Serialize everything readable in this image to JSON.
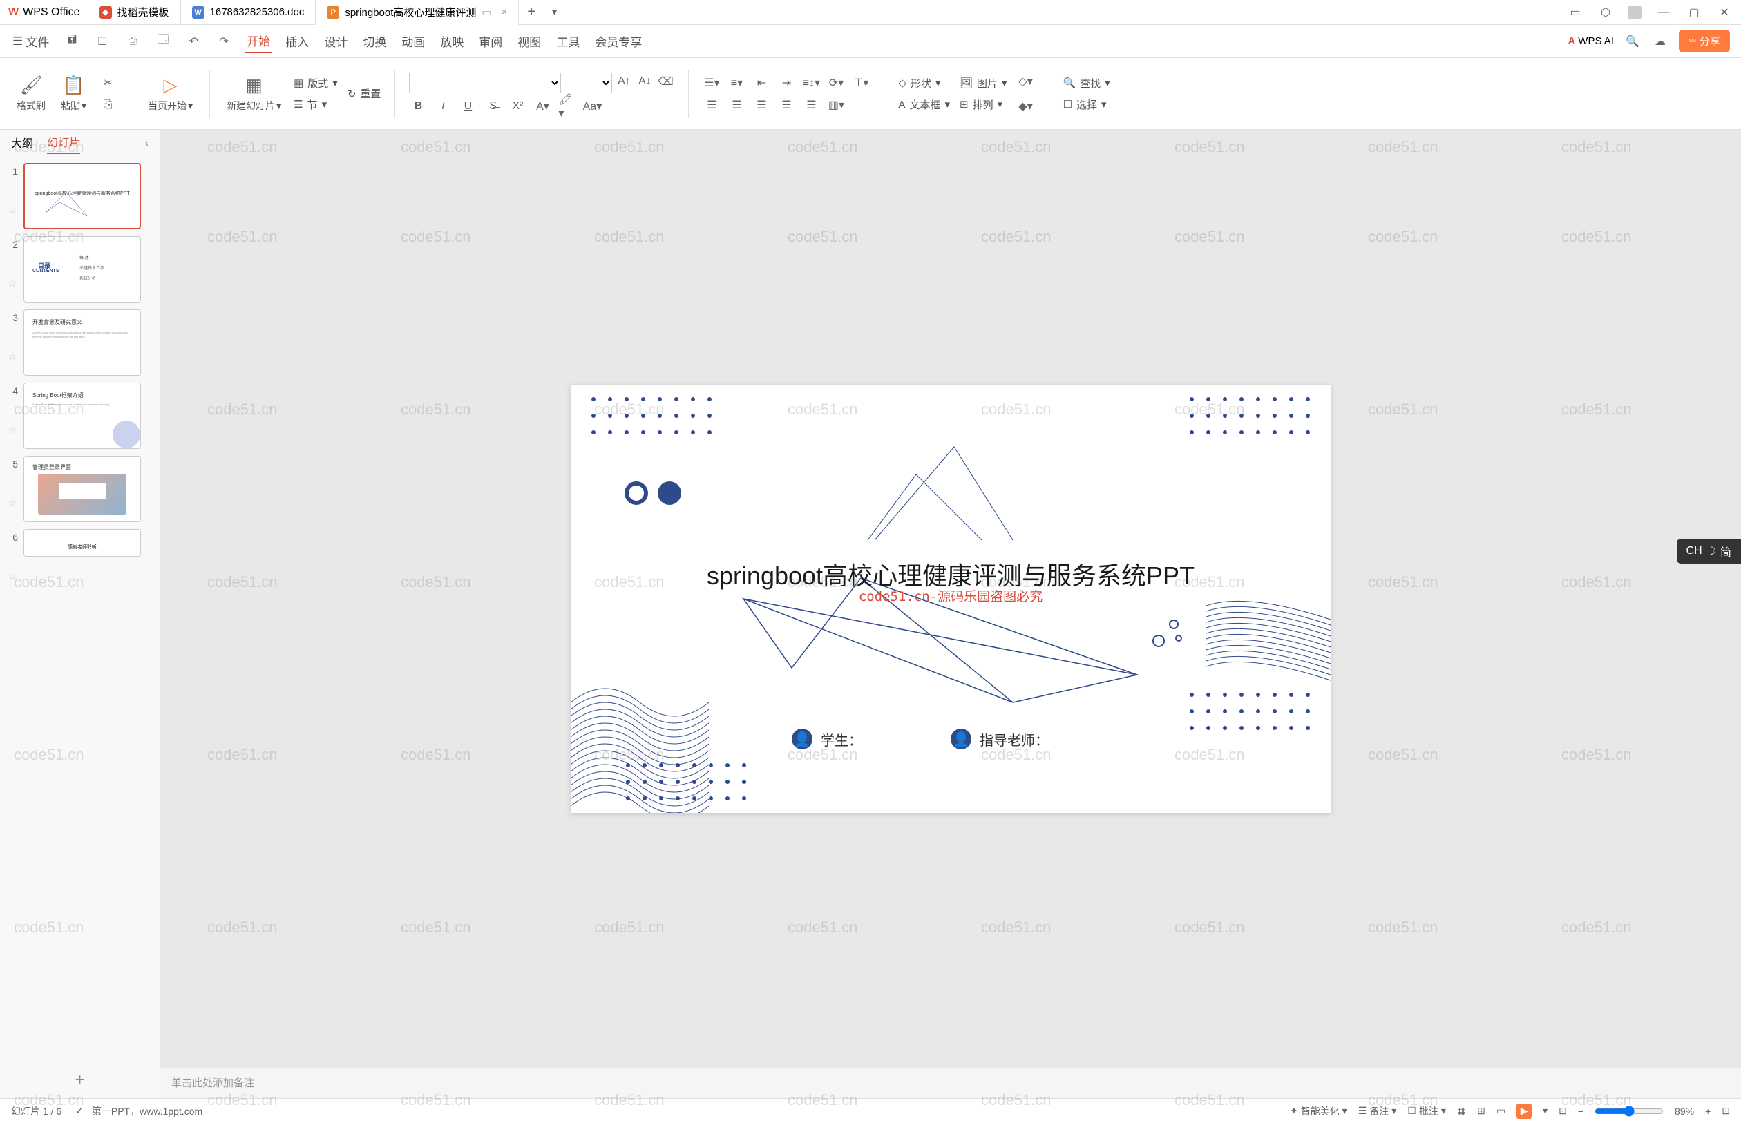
{
  "app": {
    "name": "WPS Office"
  },
  "tabs": [
    {
      "label": "找稻壳模板",
      "icon_bg": "#d94f3a",
      "icon_letter": ""
    },
    {
      "label": "1678632825306.doc",
      "icon_bg": "#4a7dd4",
      "icon_letter": "W"
    },
    {
      "label": "springboot高校心理健康评测",
      "icon_bg": "#e8852a",
      "icon_letter": "P",
      "active": true
    }
  ],
  "menus": {
    "file": "文件",
    "items": [
      "开始",
      "插入",
      "设计",
      "切换",
      "动画",
      "放映",
      "审阅",
      "视图",
      "工具",
      "会员专享"
    ],
    "active": "开始",
    "wps_ai": "WPS AI",
    "share": "分享"
  },
  "ribbon": {
    "format_painter": "格式刷",
    "paste": "粘贴",
    "from_current": "当页开始",
    "new_slide": "新建幻灯片",
    "layout": "版式",
    "section": "节",
    "reset": "重置",
    "shape": "形状",
    "picture": "图片",
    "textbox": "文本框",
    "arrange": "排列",
    "find": "查找",
    "select": "选择"
  },
  "sidebar": {
    "tab_outline": "大纲",
    "tab_slides": "幻灯片",
    "slide_count": 6
  },
  "thumbs": [
    {
      "n": 1,
      "title": "springboot高校心理健康评测与服务系统PPT"
    },
    {
      "n": 2,
      "title": "目录 CONTENTS",
      "items": [
        "概 述",
        "关键技术介绍",
        "系统分析"
      ]
    },
    {
      "n": 3,
      "title": "开发背景及研究意义"
    },
    {
      "n": 4,
      "title": "Spring Boot框架介绍"
    },
    {
      "n": 5,
      "title": "管理员登录界面"
    },
    {
      "n": 6,
      "title": "感谢老师聆听"
    }
  ],
  "slide": {
    "title": "springboot高校心理健康评测与服务系统PPT",
    "watermark_sub": "code51.cn-源码乐园盗图必究",
    "student_label": "学生：",
    "teacher_label": "指导老师：",
    "accent_color": "#2d4a8a"
  },
  "notes": {
    "placeholder": "单击此处添加备注"
  },
  "status": {
    "slide_info": "幻灯片 1 / 6",
    "template_src": "第一PPT，www.1ppt.com",
    "beautify": "智能美化",
    "notes": "备注",
    "comments": "批注",
    "zoom": "89%"
  },
  "ime": {
    "label": "CH",
    "mode": "简"
  },
  "watermark_text": "code51.cn"
}
